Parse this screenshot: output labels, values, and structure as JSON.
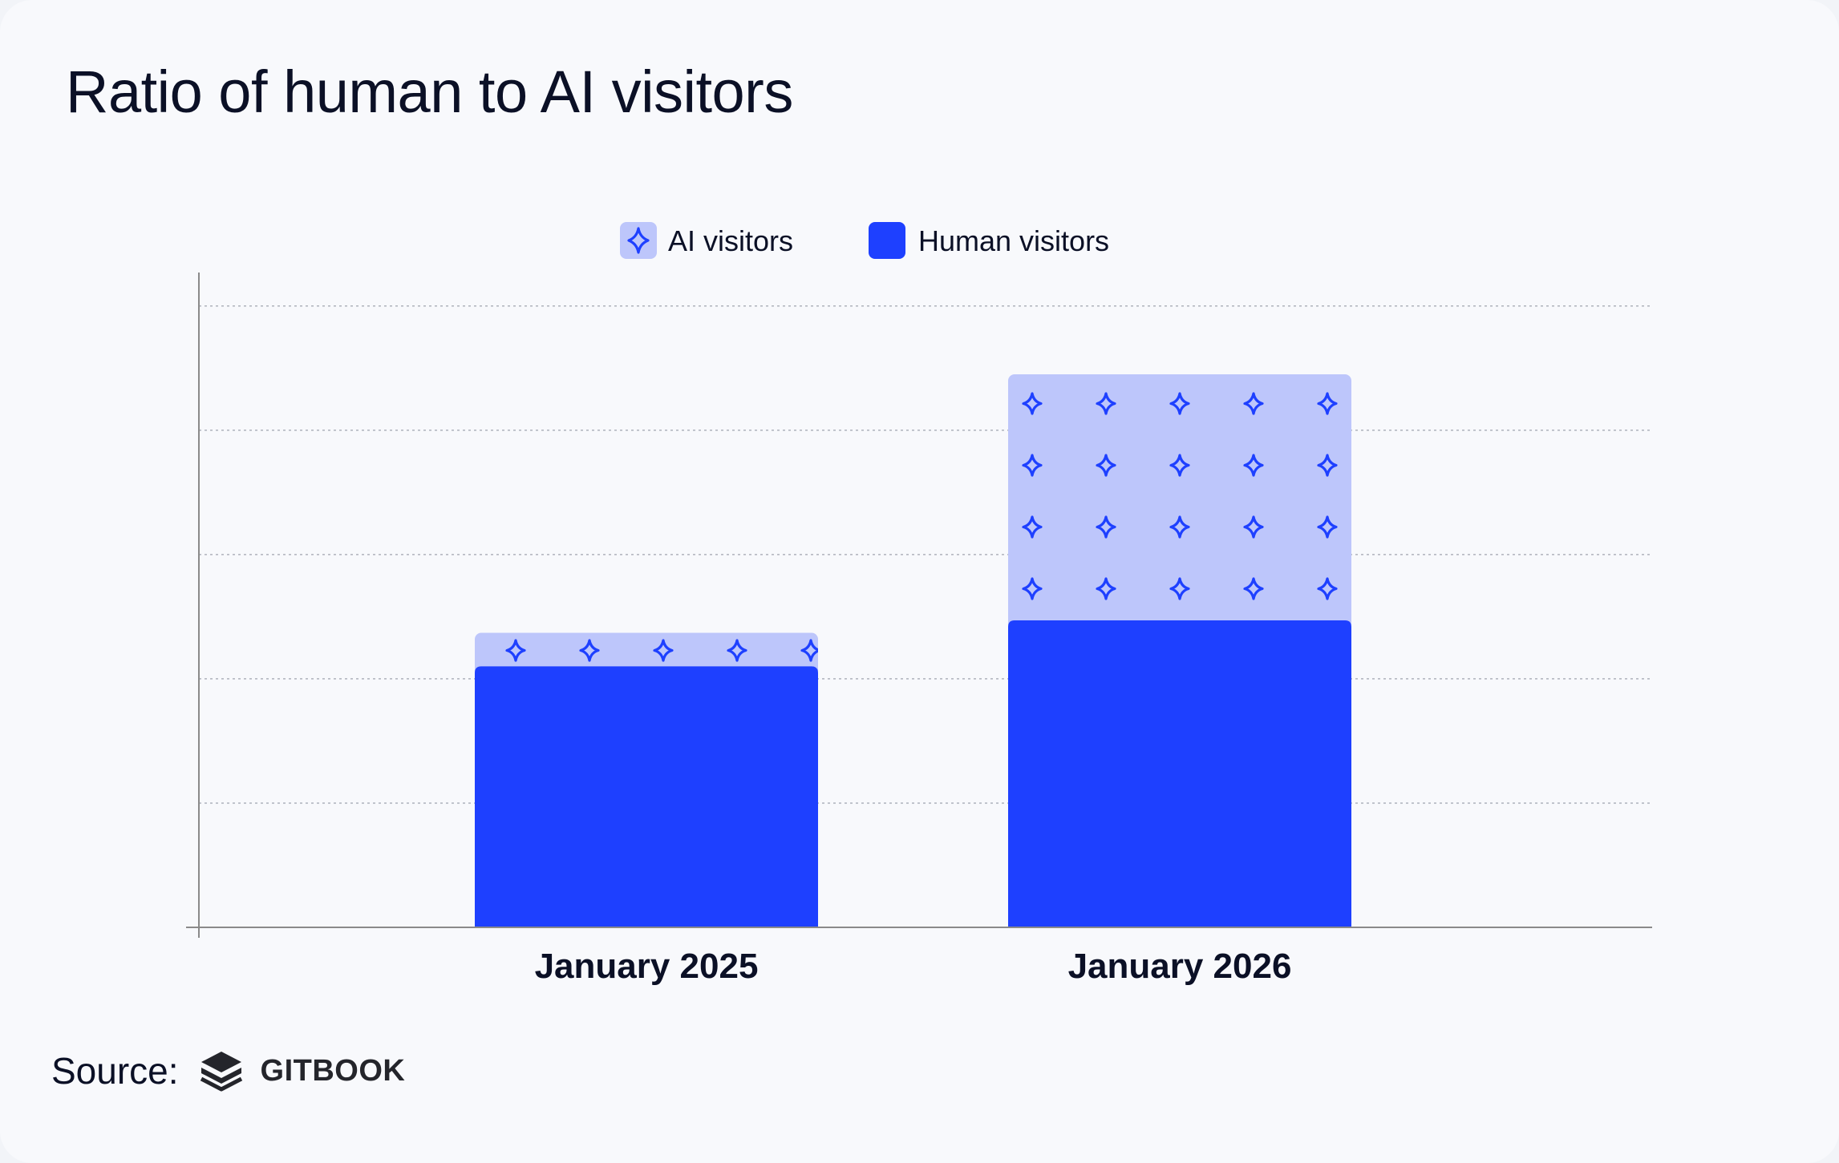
{
  "title": "Ratio of human to AI visitors",
  "source": {
    "label": "Source:",
    "brand": "GITBOOK",
    "logo_icon": "gitbook-logo-icon"
  },
  "colors": {
    "ai": "#bdc6fb",
    "human": "#1e40ff",
    "sparkle": "#1e40ff",
    "axis": "#8a8a8a",
    "grid": "#aeb2bb",
    "text": "#0b1026"
  },
  "chart_data": {
    "type": "bar",
    "stacked": true,
    "title": "Ratio of human to AI visitors",
    "xlabel": "",
    "ylabel": "",
    "categories": [
      "January 2025",
      "January 2026"
    ],
    "series": [
      {
        "name": "Human visitors",
        "values": [
          2.1,
          2.47
        ]
      },
      {
        "name": "AI visitors",
        "values": [
          0.27,
          1.98
        ]
      }
    ],
    "ylim": [
      0,
      5.14
    ],
    "grid_values": [
      1,
      2,
      3,
      4,
      5
    ],
    "grid": true,
    "y_tick_labels": false,
    "legend": [
      {
        "name": "AI visitors",
        "icon": "sparkle-icon"
      },
      {
        "name": "Human visitors",
        "icon": "square-icon"
      }
    ],
    "legend_position": "top-center"
  }
}
